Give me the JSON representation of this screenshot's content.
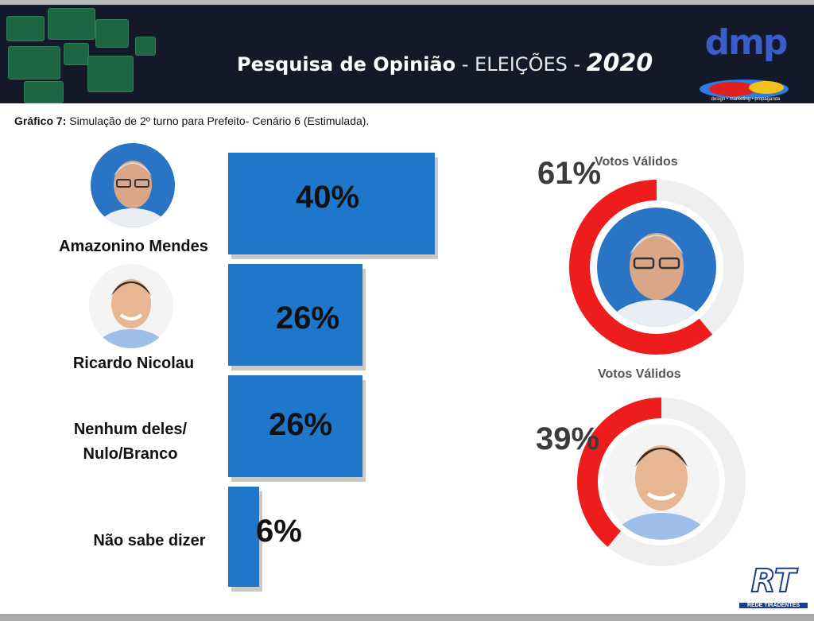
{
  "banner": {
    "title_bold": "Pesquisa de Opinião",
    "title_light": " - ELEIÇÕES - ",
    "year": "2020",
    "logo_text": "dmp",
    "logo_sub": "design • marketing • propaganda"
  },
  "caption": {
    "label": "Gráfico 7:",
    "text": " Simulação de 2º turno para Prefeito- Cenário 6 (Estimulada)."
  },
  "chart_data": [
    {
      "type": "bar",
      "orientation": "horizontal",
      "categories": [
        "Amazonino Mendes",
        "Ricardo Nicolau",
        "Nenhum deles/ Nulo/Branco",
        "Não sabe dizer"
      ],
      "values": [
        40,
        26,
        26,
        6
      ],
      "data_labels": [
        "40%",
        "26%",
        "26%",
        "6%"
      ],
      "bar_color": "#1f77cc"
    },
    {
      "type": "pie",
      "title": "Votos Válidos",
      "values": [
        61,
        39
      ],
      "data_label": "61%",
      "highlight_color": "#ee1c1c",
      "rest_color": "#efefef"
    },
    {
      "type": "pie",
      "title": "Votos Válidos",
      "values": [
        39,
        61
      ],
      "data_label": "39%",
      "highlight_color": "#ee1c1c",
      "rest_color": "#efefef"
    }
  ],
  "labels": {
    "cand1": "Amazonino Mendes",
    "cand2": "Ricardo Nicolau",
    "none_l1": "Nenhum deles/",
    "none_l2": "Nulo/Branco",
    "unknown": "Não sabe dizer"
  },
  "footer": {
    "rt_logo": "RT",
    "rt_sub": "REDE TIRADENTES"
  }
}
